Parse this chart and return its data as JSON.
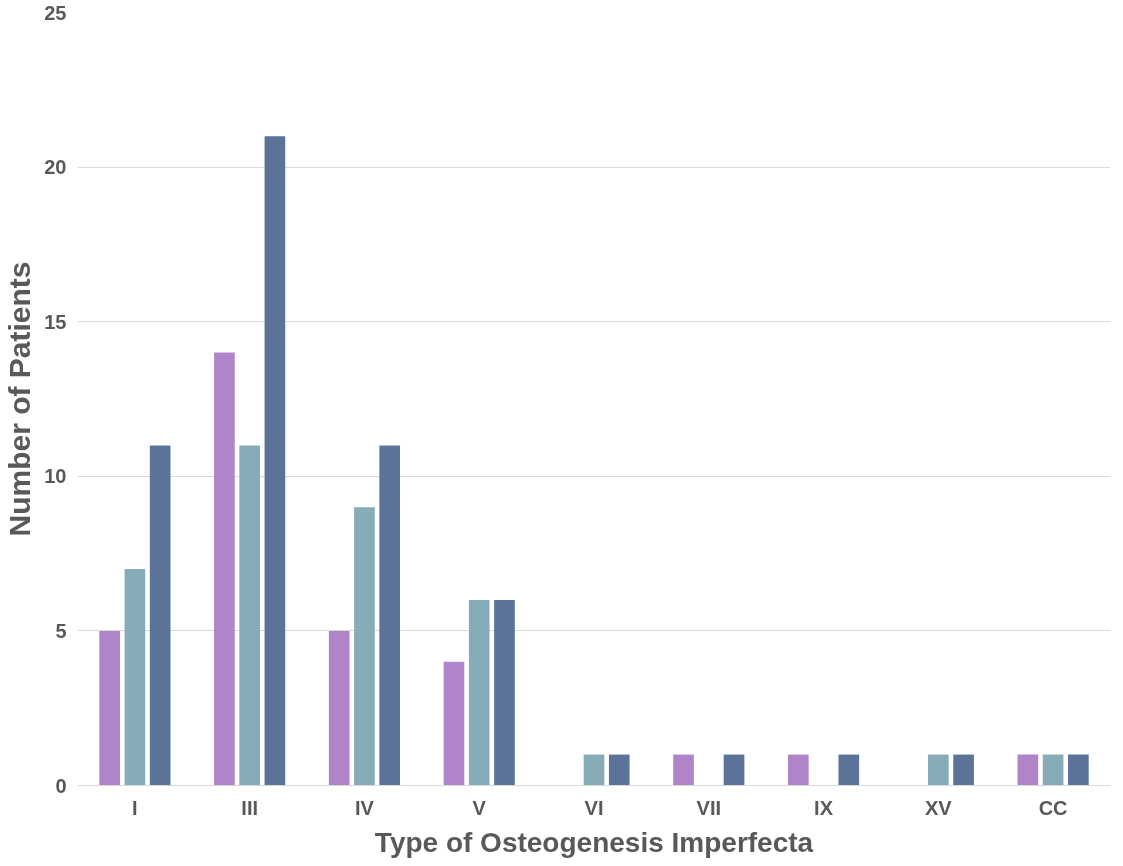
{
  "chart_data": {
    "type": "bar",
    "xlabel": "Type of Osteogenesis Imperfecta",
    "ylabel": "Number of Patients",
    "categories": [
      "I",
      "III",
      "IV",
      "V",
      "VI",
      "VII",
      "IX",
      "XV",
      "CC"
    ],
    "series": [
      {
        "color": "#af84c9",
        "values": [
          5,
          14,
          5,
          4,
          0,
          1,
          1,
          0,
          1
        ]
      },
      {
        "color": "#86adb7",
        "values": [
          7,
          11,
          9,
          6,
          1,
          0,
          0,
          1,
          1
        ]
      },
      {
        "color": "#5b7299",
        "values": [
          11,
          21,
          11,
          6,
          1,
          1,
          1,
          1,
          1
        ]
      }
    ],
    "ylim": [
      0,
      25
    ],
    "yticks": [
      0,
      5,
      10,
      15,
      20,
      25
    ],
    "grid": "y"
  }
}
